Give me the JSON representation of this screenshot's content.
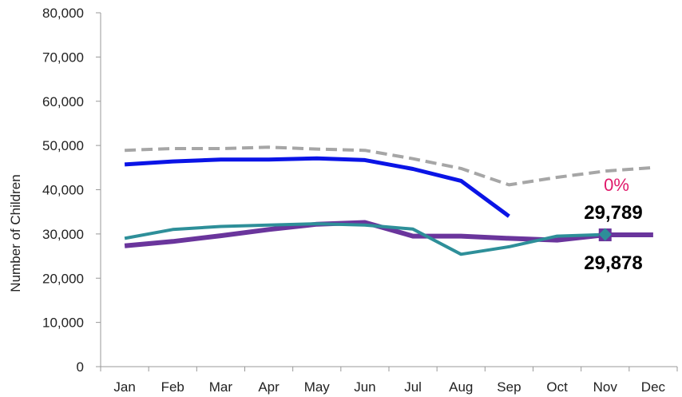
{
  "chart_data": {
    "type": "line",
    "categories": [
      "Jan",
      "Feb",
      "Mar",
      "Apr",
      "May",
      "Jun",
      "Jul",
      "Aug",
      "Sep",
      "Oct",
      "Nov",
      "Dec"
    ],
    "ylabel": "Number of Children",
    "ylim": [
      0,
      80000
    ],
    "yticks": [
      0,
      10000,
      20000,
      30000,
      40000,
      50000,
      60000,
      70000,
      80000
    ],
    "ytick_labels": [
      "0",
      "10,000",
      "20,000",
      "30,000",
      "40,000",
      "50,000",
      "60,000",
      "70,000",
      "80,000"
    ],
    "grid": false,
    "legend": "none",
    "series": [
      {
        "style": "dashed",
        "color": "#a6a6a6",
        "values": [
          48900,
          49300,
          49300,
          49600,
          49200,
          48900,
          47000,
          44800,
          41100,
          42800,
          44200,
          45000
        ]
      },
      {
        "style": "solid",
        "color": "#0a14e6",
        "values": [
          45700,
          46400,
          46800,
          46800,
          47100,
          46700,
          44700,
          42000,
          34000,
          null,
          null,
          null
        ]
      },
      {
        "style": "solid",
        "color": "#6a359c",
        "values": [
          27300,
          28300,
          29600,
          31000,
          32200,
          32600,
          29500,
          29500,
          29000,
          28600,
          29789,
          29800
        ]
      },
      {
        "style": "solid",
        "color": "#2e8f99",
        "values": [
          29000,
          31000,
          31700,
          32000,
          32300,
          32000,
          31100,
          25400,
          27100,
          29500,
          29878,
          null
        ]
      }
    ],
    "annotations": [
      {
        "text": "0%",
        "color": "#e0196b"
      },
      {
        "text": "29,789",
        "color": "#000000"
      },
      {
        "text": "29,878",
        "color": "#000000"
      }
    ]
  }
}
